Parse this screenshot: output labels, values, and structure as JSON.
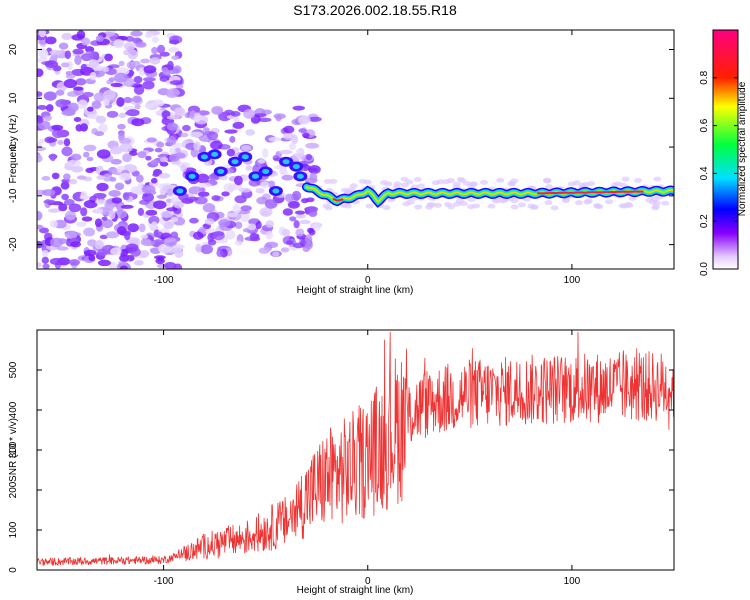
{
  "title": "S173.2026.002.18.55.R18",
  "chart_data": [
    {
      "type": "heatmap",
      "xlabel": "Height of straight line (km)",
      "ylabel": "Frequency (Hz)",
      "xlim": [
        -162,
        150
      ],
      "ylim": [
        -25,
        24
      ],
      "xticks": [
        -100,
        0,
        100
      ],
      "yticks": [
        -20,
        -10,
        0,
        10,
        20
      ],
      "colorbar": {
        "label": "Normalized spectral amplitude",
        "range": [
          0,
          1
        ],
        "ticks": [
          0.0,
          0.2,
          0.4,
          0.6,
          0.8
        ]
      },
      "ridge": {
        "description_points": [
          {
            "x": -30,
            "y": -8
          },
          {
            "x": -25,
            "y": -9
          },
          {
            "x": -15,
            "y": -11
          },
          {
            "x": -5,
            "y": -10
          },
          {
            "x": 0,
            "y": -9
          },
          {
            "x": 5,
            "y": -11
          },
          {
            "x": 10,
            "y": -9.5
          },
          {
            "x": 30,
            "y": -9.5
          },
          {
            "x": 80,
            "y": -9.5
          },
          {
            "x": 150,
            "y": -9
          }
        ]
      }
    },
    {
      "type": "line",
      "xlabel": "Height of straight line (km)",
      "ylabel": "SNR (10 * v/v)",
      "xlim": [
        -162,
        150
      ],
      "ylim": [
        0,
        600
      ],
      "xticks": [
        -100,
        0,
        100
      ],
      "yticks": [
        0,
        100,
        200,
        300,
        400,
        500
      ],
      "series": [
        {
          "name": "SNR",
          "color": "#ee3333",
          "envelope": [
            {
              "x": -162,
              "y": 20
            },
            {
              "x": -100,
              "y": 25
            },
            {
              "x": -90,
              "y": 40
            },
            {
              "x": -80,
              "y": 60
            },
            {
              "x": -60,
              "y": 80
            },
            {
              "x": -40,
              "y": 120
            },
            {
              "x": -30,
              "y": 180
            },
            {
              "x": -20,
              "y": 230
            },
            {
              "x": -10,
              "y": 250
            },
            {
              "x": 0,
              "y": 280
            },
            {
              "x": 10,
              "y": 330
            },
            {
              "x": 20,
              "y": 390
            },
            {
              "x": 30,
              "y": 420
            },
            {
              "x": 50,
              "y": 440
            },
            {
              "x": 80,
              "y": 450
            },
            {
              "x": 110,
              "y": 455
            },
            {
              "x": 150,
              "y": 460
            }
          ]
        }
      ]
    }
  ]
}
